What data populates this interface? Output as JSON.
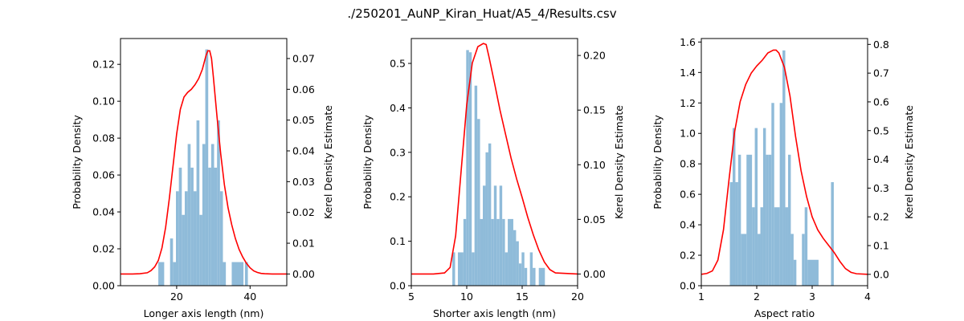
{
  "figure": {
    "title": "./250201_AuNP_Kiran_Huat/A5_4/Results.csv"
  },
  "chart_data": [
    {
      "type": "bar",
      "xlabel": "Longer axis length (nm)",
      "ylabel": "Probability Density",
      "y2label": "Kerel Density Estimate",
      "xlim": [
        4.7,
        50
      ],
      "ylim": [
        0,
        0.134
      ],
      "y2lim": [
        -0.0038,
        0.0765
      ],
      "xticks": [
        "20",
        "40"
      ],
      "xtick_values": [
        20,
        40
      ],
      "yticks": [
        "0.00",
        "0.02",
        "0.04",
        "0.06",
        "0.08",
        "0.10",
        "0.12"
      ],
      "ytick_values": [
        0,
        0.02,
        0.04,
        0.06,
        0.08,
        0.1,
        0.12
      ],
      "y2ticks": [
        "0.00",
        "0.01",
        "0.02",
        "0.03",
        "0.04",
        "0.05",
        "0.06",
        "0.07"
      ],
      "y2tick_values": [
        0,
        0.01,
        0.02,
        0.03,
        0.04,
        0.05,
        0.06,
        0.07
      ],
      "bar_color": "#8fbbd9",
      "line_color": "#ff0000",
      "bins": [
        {
          "x0": 15.0,
          "x1": 16.6,
          "value": 0.0128
        },
        {
          "x0": 18.2,
          "x1": 19.0,
          "value": 0.0256
        },
        {
          "x0": 19.0,
          "x1": 19.8,
          "value": 0.0128
        },
        {
          "x0": 19.8,
          "x1": 20.6,
          "value": 0.0512
        },
        {
          "x0": 20.6,
          "x1": 21.4,
          "value": 0.064
        },
        {
          "x0": 21.4,
          "x1": 22.2,
          "value": 0.0384
        },
        {
          "x0": 22.2,
          "x1": 23.0,
          "value": 0.0512
        },
        {
          "x0": 23.0,
          "x1": 23.8,
          "value": 0.0768
        },
        {
          "x0": 23.8,
          "x1": 24.6,
          "value": 0.064
        },
        {
          "x0": 24.6,
          "x1": 25.4,
          "value": 0.0512
        },
        {
          "x0": 25.4,
          "x1": 26.2,
          "value": 0.0896
        },
        {
          "x0": 26.2,
          "x1": 27.0,
          "value": 0.0384
        },
        {
          "x0": 27.0,
          "x1": 27.8,
          "value": 0.0768
        },
        {
          "x0": 27.8,
          "x1": 28.6,
          "value": 0.1281
        },
        {
          "x0": 28.6,
          "x1": 29.4,
          "value": 0.064
        },
        {
          "x0": 29.4,
          "x1": 30.2,
          "value": 0.0768
        },
        {
          "x0": 30.2,
          "x1": 31.0,
          "value": 0.064
        },
        {
          "x0": 31.0,
          "x1": 31.8,
          "value": 0.0896
        },
        {
          "x0": 31.8,
          "x1": 32.6,
          "value": 0.0512
        },
        {
          "x0": 32.6,
          "x1": 33.4,
          "value": 0.0128
        },
        {
          "x0": 35.0,
          "x1": 38.2,
          "value": 0.0128
        },
        {
          "x0": 38.6,
          "x1": 39.4,
          "value": 0.0128
        }
      ],
      "kde": {
        "x": [
          4.7,
          8,
          10,
          12,
          13,
          14,
          15,
          16,
          17,
          18,
          19,
          20,
          21,
          22,
          23,
          24,
          25,
          26,
          27,
          28,
          28.5,
          29,
          29.5,
          30,
          31,
          32,
          33,
          34,
          35,
          36,
          37,
          38,
          39,
          40,
          41,
          42,
          43,
          44,
          46,
          48,
          50
        ],
        "y": [
          0.0,
          0.0,
          0.0001,
          0.0004,
          0.0011,
          0.0023,
          0.0044,
          0.0085,
          0.0152,
          0.0245,
          0.035,
          0.0455,
          0.0535,
          0.0575,
          0.059,
          0.06,
          0.0615,
          0.0635,
          0.0665,
          0.071,
          0.0725,
          0.0725,
          0.07,
          0.064,
          0.051,
          0.039,
          0.029,
          0.0215,
          0.016,
          0.0115,
          0.008,
          0.0055,
          0.0035,
          0.002,
          0.001,
          0.0005,
          0.0002,
          0.0001,
          0.0,
          0.0,
          0.0
        ]
      }
    },
    {
      "type": "bar",
      "xlabel": "Shorter axis length (nm)",
      "ylabel": "Probability Density",
      "y2label": "Kerel Density Estimate",
      "xlim": [
        5,
        20
      ],
      "ylim": [
        0,
        0.556
      ],
      "y2lim": [
        -0.0107,
        0.2155
      ],
      "xticks": [
        "5",
        "10",
        "15",
        "20"
      ],
      "xtick_values": [
        5,
        10,
        15,
        20
      ],
      "yticks": [
        "0.0",
        "0.1",
        "0.2",
        "0.3",
        "0.4",
        "0.5"
      ],
      "ytick_values": [
        0,
        0.1,
        0.2,
        0.3,
        0.4,
        0.5
      ],
      "y2ticks": [
        "0.00",
        "0.05",
        "0.10",
        "0.15",
        "0.20"
      ],
      "y2tick_values": [
        0,
        0.05,
        0.1,
        0.15,
        0.2
      ],
      "bar_color": "#8fbbd9",
      "line_color": "#ff0000",
      "bins": [
        {
          "x0": 8.7,
          "x1": 8.95,
          "value": 0.075
        },
        {
          "x0": 9.2,
          "x1": 9.7,
          "value": 0.075
        },
        {
          "x0": 9.7,
          "x1": 9.95,
          "value": 0.15
        },
        {
          "x0": 9.95,
          "x1": 10.2,
          "value": 0.53
        },
        {
          "x0": 10.2,
          "x1": 10.45,
          "value": 0.525
        },
        {
          "x0": 10.45,
          "x1": 10.7,
          "value": 0.075
        },
        {
          "x0": 10.7,
          "x1": 10.95,
          "value": 0.45
        },
        {
          "x0": 10.95,
          "x1": 11.2,
          "value": 0.375
        },
        {
          "x0": 11.2,
          "x1": 11.45,
          "value": 0.15
        },
        {
          "x0": 11.45,
          "x1": 11.7,
          "value": 0.225
        },
        {
          "x0": 11.7,
          "x1": 11.95,
          "value": 0.3
        },
        {
          "x0": 11.95,
          "x1": 12.2,
          "value": 0.32
        },
        {
          "x0": 12.2,
          "x1": 12.45,
          "value": 0.15
        },
        {
          "x0": 12.45,
          "x1": 12.7,
          "value": 0.225
        },
        {
          "x0": 12.7,
          "x1": 12.95,
          "value": 0.15
        },
        {
          "x0": 12.95,
          "x1": 13.2,
          "value": 0.225
        },
        {
          "x0": 13.2,
          "x1": 13.45,
          "value": 0.15
        },
        {
          "x0": 13.45,
          "x1": 13.7,
          "value": 0.075
        },
        {
          "x0": 13.7,
          "x1": 13.95,
          "value": 0.15
        },
        {
          "x0": 13.95,
          "x1": 14.2,
          "value": 0.15
        },
        {
          "x0": 14.2,
          "x1": 14.45,
          "value": 0.125
        },
        {
          "x0": 14.45,
          "x1": 14.7,
          "value": 0.1
        },
        {
          "x0": 14.7,
          "x1": 14.95,
          "value": 0.05
        },
        {
          "x0": 14.95,
          "x1": 15.2,
          "value": 0.075
        },
        {
          "x0": 15.2,
          "x1": 15.45,
          "value": 0.04
        },
        {
          "x0": 15.7,
          "x1": 15.95,
          "value": 0.075
        },
        {
          "x0": 15.95,
          "x1": 16.2,
          "value": 0.04
        },
        {
          "x0": 16.5,
          "x1": 17.05,
          "value": 0.04
        }
      ],
      "kde": {
        "x": [
          5,
          7,
          8,
          8.5,
          9,
          9.5,
          10,
          10.5,
          11,
          11.5,
          11.75,
          12,
          12.5,
          13,
          13.5,
          14,
          14.5,
          15,
          15.5,
          16,
          16.5,
          17,
          17.5,
          18,
          20
        ],
        "y": [
          0.0,
          0.0,
          0.001,
          0.006,
          0.035,
          0.095,
          0.155,
          0.193,
          0.208,
          0.211,
          0.21,
          0.199,
          0.175,
          0.15,
          0.128,
          0.106,
          0.087,
          0.07,
          0.052,
          0.036,
          0.022,
          0.011,
          0.004,
          0.001,
          0.0
        ]
      }
    },
    {
      "type": "bar",
      "xlabel": "Aspect ratio",
      "ylabel": "Probability Density",
      "y2label": "Kerel Density Estimate",
      "xlim": [
        1,
        4
      ],
      "ylim": [
        0,
        1.623
      ],
      "y2lim": [
        -0.0395,
        0.8204
      ],
      "xticks": [
        "1",
        "2",
        "3",
        "4"
      ],
      "xtick_values": [
        1,
        2,
        3,
        4
      ],
      "yticks": [
        "0.0",
        "0.2",
        "0.4",
        "0.6",
        "0.8",
        "1.0",
        "1.2",
        "1.4",
        "1.6"
      ],
      "ytick_values": [
        0,
        0.2,
        0.4,
        0.6,
        0.8,
        1.0,
        1.2,
        1.4,
        1.6
      ],
      "y2ticks": [
        "0.0",
        "0.1",
        "0.2",
        "0.3",
        "0.4",
        "0.5",
        "0.6",
        "0.7",
        "0.8"
      ],
      "y2tick_values": [
        0,
        0.1,
        0.2,
        0.3,
        0.4,
        0.5,
        0.6,
        0.7,
        0.8
      ],
      "bar_color": "#8fbbd9",
      "line_color": "#ff0000",
      "bins": [
        {
          "x0": 1.515,
          "x1": 1.565,
          "value": 0.68
        },
        {
          "x0": 1.565,
          "x1": 1.615,
          "value": 1.035
        },
        {
          "x0": 1.615,
          "x1": 1.665,
          "value": 0.68
        },
        {
          "x0": 1.665,
          "x1": 1.715,
          "value": 0.86
        },
        {
          "x0": 1.715,
          "x1": 1.815,
          "value": 0.34
        },
        {
          "x0": 1.815,
          "x1": 1.915,
          "value": 0.86
        },
        {
          "x0": 1.915,
          "x1": 1.965,
          "value": 0.515
        },
        {
          "x0": 1.965,
          "x1": 2.015,
          "value": 1.035
        },
        {
          "x0": 2.015,
          "x1": 2.065,
          "value": 0.34
        },
        {
          "x0": 2.065,
          "x1": 2.115,
          "value": 0.515
        },
        {
          "x0": 2.115,
          "x1": 2.165,
          "value": 1.035
        },
        {
          "x0": 2.165,
          "x1": 2.215,
          "value": 0.86
        },
        {
          "x0": 2.215,
          "x1": 2.265,
          "value": 0.86
        },
        {
          "x0": 2.265,
          "x1": 2.315,
          "value": 1.2
        },
        {
          "x0": 2.315,
          "x1": 2.415,
          "value": 0.515
        },
        {
          "x0": 2.415,
          "x1": 2.465,
          "value": 1.2
        },
        {
          "x0": 2.465,
          "x1": 2.515,
          "value": 1.545
        },
        {
          "x0": 2.515,
          "x1": 2.565,
          "value": 0.515
        },
        {
          "x0": 2.565,
          "x1": 2.615,
          "value": 0.86
        },
        {
          "x0": 2.615,
          "x1": 2.665,
          "value": 0.34
        },
        {
          "x0": 2.665,
          "x1": 2.715,
          "value": 0.17
        },
        {
          "x0": 2.815,
          "x1": 2.865,
          "value": 0.34
        },
        {
          "x0": 2.865,
          "x1": 2.915,
          "value": 0.515
        },
        {
          "x0": 2.915,
          "x1": 3.115,
          "value": 0.17
        },
        {
          "x0": 3.34,
          "x1": 3.39,
          "value": 0.68
        }
      ],
      "kde": {
        "x": [
          1,
          1.1,
          1.2,
          1.3,
          1.4,
          1.5,
          1.6,
          1.7,
          1.8,
          1.9,
          2.0,
          2.1,
          2.2,
          2.3,
          2.35,
          2.4,
          2.5,
          2.6,
          2.7,
          2.8,
          2.9,
          3.0,
          3.1,
          3.2,
          3.3,
          3.4,
          3.5,
          3.6,
          3.7,
          3.8,
          4.0
        ],
        "y": [
          0.0,
          0.003,
          0.012,
          0.05,
          0.155,
          0.33,
          0.495,
          0.6,
          0.66,
          0.7,
          0.725,
          0.745,
          0.77,
          0.78,
          0.78,
          0.77,
          0.72,
          0.62,
          0.48,
          0.36,
          0.27,
          0.2,
          0.155,
          0.125,
          0.1,
          0.075,
          0.045,
          0.02,
          0.007,
          0.002,
          0.0
        ]
      }
    }
  ]
}
